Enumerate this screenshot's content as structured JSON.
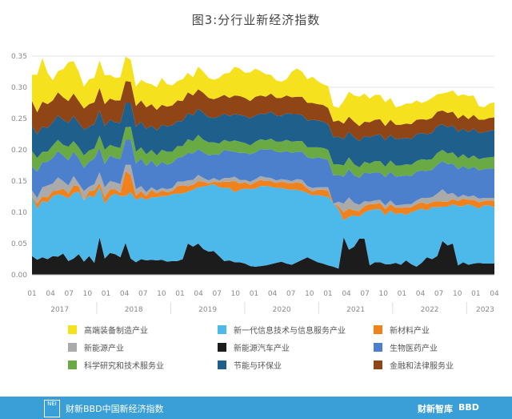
{
  "title": "图3:分行业新经济指数",
  "footer": {
    "logo": "NEI",
    "text": "财新BBD中国新经济指数",
    "brand1": "财新智库",
    "brand2": "BBD"
  },
  "chart_data": {
    "type": "area",
    "stacked": true,
    "ylim": [
      0,
      0.35
    ],
    "yticks": [
      "0.00",
      "0.05",
      "0.10",
      "0.15",
      "0.20",
      "0.25",
      "0.30",
      "0.35"
    ],
    "month_ticks": [
      "01",
      "04",
      "07",
      "10",
      "01",
      "04",
      "07",
      "10",
      "01",
      "04",
      "07",
      "10",
      "01",
      "04",
      "07",
      "10",
      "01",
      "04",
      "07",
      "10",
      "01",
      "04",
      "07",
      "10",
      "01",
      "04"
    ],
    "year_labels": [
      "2017",
      "2018",
      "2019",
      "2020",
      "2021",
      "2022",
      "2023"
    ],
    "x_start": "2017-01",
    "x_end": "2023-04",
    "legend_columns": 3,
    "grid": true,
    "series": [
      {
        "name": "新能源汽车产业",
        "color": "#1c1c1c",
        "values": [
          0.03,
          0.024,
          0.028,
          0.025,
          0.03,
          0.029,
          0.034,
          0.022,
          0.026,
          0.033,
          0.021,
          0.03,
          0.019,
          0.06,
          0.026,
          0.035,
          0.033,
          0.028,
          0.051,
          0.026,
          0.02,
          0.025,
          0.023,
          0.024,
          0.023,
          0.024,
          0.021,
          0.022,
          0.022,
          0.025,
          0.05,
          0.045,
          0.05,
          0.041,
          0.037,
          0.038,
          0.03,
          0.022,
          0.023,
          0.02,
          0.02,
          0.018,
          0.014,
          0.013,
          0.014,
          0.015,
          0.017,
          0.019,
          0.021,
          0.018,
          0.016,
          0.02,
          0.024,
          0.028,
          0.024,
          0.02,
          0.018,
          0.015,
          0.013,
          0.01,
          0.06,
          0.04,
          0.045,
          0.058,
          0.058,
          0.015,
          0.02,
          0.02,
          0.017,
          0.017,
          0.019,
          0.016,
          0.023,
          0.017,
          0.013,
          0.019,
          0.028,
          0.025,
          0.03,
          0.054,
          0.047,
          0.05,
          0.015,
          0.02,
          0.016,
          0.018,
          0.019,
          0.018,
          0.018,
          0.018
        ]
      },
      {
        "name": "新一代信息技术与信息服务产业",
        "color": "#4db8ea",
        "values": [
          0.095,
          0.082,
          0.09,
          0.091,
          0.096,
          0.1,
          0.093,
          0.1,
          0.105,
          0.1,
          0.098,
          0.097,
          0.105,
          0.08,
          0.088,
          0.09,
          0.097,
          0.098,
          0.075,
          0.106,
          0.1,
          0.099,
          0.097,
          0.1,
          0.101,
          0.102,
          0.105,
          0.107,
          0.108,
          0.105,
          0.083,
          0.091,
          0.09,
          0.1,
          0.106,
          0.107,
          0.11,
          0.117,
          0.116,
          0.112,
          0.116,
          0.12,
          0.123,
          0.125,
          0.128,
          0.127,
          0.124,
          0.12,
          0.118,
          0.119,
          0.12,
          0.116,
          0.11,
          0.103,
          0.103,
          0.108,
          0.108,
          0.11,
          0.101,
          0.095,
          0.027,
          0.053,
          0.05,
          0.035,
          0.042,
          0.088,
          0.085,
          0.085,
          0.078,
          0.086,
          0.078,
          0.083,
          0.073,
          0.083,
          0.09,
          0.087,
          0.075,
          0.083,
          0.078,
          0.055,
          0.062,
          0.063,
          0.095,
          0.09,
          0.097,
          0.092,
          0.087,
          0.093,
          0.093,
          0.09
        ]
      },
      {
        "name": "新材料产业",
        "color": "#f0821e",
        "values": [
          0.0,
          0.008,
          0.007,
          0.008,
          0.008,
          0.006,
          0.011,
          0.008,
          0.012,
          0.009,
          0.0,
          0.007,
          0.011,
          0.007,
          0.01,
          0.012,
          0.007,
          0.005,
          0.04,
          0.028,
          0.007,
          0.01,
          0.006,
          0.012,
          0.006,
          0.009,
          0.006,
          0.005,
          0.012,
          0.013,
          0.009,
          0.008,
          0.01,
          0.008,
          0.003,
          0.004,
          0.008,
          0.01,
          0.01,
          0.018,
          0.01,
          0.01,
          0.007,
          0.01,
          0.01,
          0.008,
          0.009,
          0.008,
          0.01,
          0.01,
          0.01,
          0.012,
          0.012,
          0.007,
          0.006,
          0.008,
          0.01,
          0.01,
          0.0,
          0.005,
          0.013,
          0.013,
          0.008,
          0.009,
          0.01,
          0.01,
          0.008,
          0.01,
          0.01,
          0.01,
          0.01,
          0.008,
          0.012,
          0.008,
          0.01,
          0.01,
          0.01,
          0.008,
          0.01,
          0.008,
          0.008,
          0.008,
          0.008,
          0.012,
          0.007,
          0.01,
          0.01,
          0.007,
          0.008,
          0.01
        ]
      },
      {
        "name": "新能源产业",
        "color": "#aaaaaa",
        "values": [
          0.01,
          0.009,
          0.015,
          0.019,
          0.012,
          0.021,
          0.012,
          0.013,
          0.015,
          0.004,
          0.015,
          0.007,
          0.01,
          0.017,
          0.016,
          0.013,
          0.011,
          0.014,
          0.01,
          0.016,
          0.01,
          0.008,
          0.006,
          0.004,
          0.005,
          0.004,
          0.005,
          0.005,
          0.007,
          0.006,
          0.009,
          0.008,
          0.01,
          0.006,
          0.005,
          0.006,
          0.003,
          0.006,
          0.006,
          0.007,
          0.006,
          0.004,
          0.005,
          0.005,
          0.006,
          0.006,
          0.005,
          0.004,
          0.004,
          0.005,
          0.004,
          0.005,
          0.006,
          0.004,
          0.006,
          0.004,
          0.004,
          0.005,
          0.0,
          0.007,
          0.014,
          0.018,
          0.012,
          0.01,
          0.008,
          0.004,
          0.006,
          0.005,
          0.006,
          0.006,
          0.004,
          0.005,
          0.005,
          0.005,
          0.006,
          0.007,
          0.01,
          0.008,
          0.012,
          0.02,
          0.012,
          0.01,
          0.006,
          0.006,
          0.005,
          0.007,
          0.006,
          0.005,
          0.004,
          0.005
        ]
      },
      {
        "name": "生物医药产业",
        "color": "#4c7fcc",
        "values": [
          0.038,
          0.042,
          0.04,
          0.038,
          0.041,
          0.042,
          0.041,
          0.04,
          0.039,
          0.04,
          0.037,
          0.04,
          0.041,
          0.039,
          0.037,
          0.041,
          0.039,
          0.04,
          0.04,
          0.04,
          0.041,
          0.044,
          0.042,
          0.043,
          0.038,
          0.042,
          0.039,
          0.04,
          0.038,
          0.04,
          0.044,
          0.042,
          0.041,
          0.041,
          0.04,
          0.038,
          0.041,
          0.045,
          0.043,
          0.04,
          0.043,
          0.043,
          0.044,
          0.043,
          0.043,
          0.044,
          0.046,
          0.046,
          0.043,
          0.046,
          0.045,
          0.044,
          0.045,
          0.046,
          0.047,
          0.048,
          0.046,
          0.044,
          0.045,
          0.043,
          0.043,
          0.045,
          0.044,
          0.043,
          0.046,
          0.045,
          0.045,
          0.044,
          0.045,
          0.046,
          0.046,
          0.046,
          0.046,
          0.045,
          0.046,
          0.044,
          0.043,
          0.044,
          0.046,
          0.045,
          0.048,
          0.047,
          0.045,
          0.046,
          0.044,
          0.046,
          0.045,
          0.046,
          0.047,
          0.047
        ]
      },
      {
        "name": "科学研究和技术服务业",
        "color": "#6aaa44",
        "values": [
          0.025,
          0.022,
          0.017,
          0.016,
          0.02,
          0.018,
          0.017,
          0.022,
          0.017,
          0.018,
          0.02,
          0.018,
          0.016,
          0.02,
          0.023,
          0.017,
          0.018,
          0.018,
          0.02,
          0.021,
          0.019,
          0.018,
          0.019,
          0.017,
          0.018,
          0.019,
          0.021,
          0.018,
          0.019,
          0.017,
          0.022,
          0.02,
          0.023,
          0.02,
          0.021,
          0.019,
          0.018,
          0.016,
          0.015,
          0.018,
          0.018,
          0.016,
          0.014,
          0.017,
          0.016,
          0.015,
          0.017,
          0.016,
          0.017,
          0.018,
          0.018,
          0.017,
          0.017,
          0.016,
          0.018,
          0.016,
          0.017,
          0.016,
          0.018,
          0.017,
          0.018,
          0.019,
          0.018,
          0.017,
          0.017,
          0.016,
          0.018,
          0.018,
          0.017,
          0.018,
          0.018,
          0.017,
          0.018,
          0.018,
          0.017,
          0.018,
          0.018,
          0.017,
          0.019,
          0.018,
          0.017,
          0.018,
          0.018,
          0.019,
          0.017,
          0.018,
          0.018,
          0.018,
          0.018,
          0.019
        ]
      },
      {
        "name": "节能与环保业",
        "color": "#1f5f8c",
        "values": [
          0.04,
          0.038,
          0.04,
          0.038,
          0.037,
          0.039,
          0.04,
          0.038,
          0.04,
          0.039,
          0.041,
          0.038,
          0.039,
          0.04,
          0.038,
          0.04,
          0.039,
          0.04,
          0.039,
          0.038,
          0.04,
          0.041,
          0.04,
          0.039,
          0.04,
          0.04,
          0.041,
          0.042,
          0.04,
          0.04,
          0.042,
          0.041,
          0.042,
          0.043,
          0.04,
          0.039,
          0.043,
          0.042,
          0.041,
          0.042,
          0.043,
          0.043,
          0.043,
          0.042,
          0.041,
          0.042,
          0.043,
          0.042,
          0.041,
          0.043,
          0.044,
          0.043,
          0.042,
          0.043,
          0.044,
          0.043,
          0.042,
          0.041,
          0.043,
          0.044,
          0.042,
          0.041,
          0.043,
          0.042,
          0.041,
          0.042,
          0.041,
          0.043,
          0.042,
          0.041,
          0.042,
          0.043,
          0.042,
          0.041,
          0.043,
          0.042,
          0.041,
          0.042,
          0.043,
          0.041,
          0.042,
          0.043,
          0.042,
          0.041,
          0.042,
          0.043,
          0.042,
          0.041,
          0.042,
          0.043
        ]
      },
      {
        "name": "金融和法律服务业",
        "color": "#8f4516",
        "values": [
          0.04,
          0.035,
          0.04,
          0.038,
          0.035,
          0.037,
          0.036,
          0.035,
          0.036,
          0.035,
          0.034,
          0.036,
          0.035,
          0.036,
          0.035,
          0.034,
          0.035,
          0.036,
          0.035,
          0.034,
          0.033,
          0.034,
          0.035,
          0.034,
          0.033,
          0.032,
          0.031,
          0.032,
          0.033,
          0.032,
          0.033,
          0.032,
          0.031,
          0.032,
          0.031,
          0.03,
          0.031,
          0.03,
          0.029,
          0.03,
          0.03,
          0.029,
          0.028,
          0.03,
          0.029,
          0.028,
          0.029,
          0.028,
          0.029,
          0.028,
          0.027,
          0.028,
          0.029,
          0.028,
          0.027,
          0.026,
          0.027,
          0.026,
          0.025,
          0.026,
          0.025,
          0.024,
          0.025,
          0.024,
          0.023,
          0.024,
          0.025,
          0.024,
          0.023,
          0.024,
          0.023,
          0.022,
          0.023,
          0.024,
          0.023,
          0.022,
          0.023,
          0.024,
          0.023,
          0.022,
          0.023,
          0.022,
          0.021,
          0.022,
          0.021,
          0.022,
          0.021,
          0.02,
          0.021,
          0.02
        ]
      },
      {
        "name": "高端装备制造产业",
        "color": "#f5e11e",
        "values": [
          0.042,
          0.06,
          0.07,
          0.05,
          0.032,
          0.034,
          0.045,
          0.062,
          0.052,
          0.047,
          0.035,
          0.04,
          0.039,
          0.044,
          0.046,
          0.038,
          0.036,
          0.037,
          0.039,
          0.035,
          0.031,
          0.033,
          0.039,
          0.032,
          0.036,
          0.043,
          0.036,
          0.032,
          0.031,
          0.035,
          0.031,
          0.029,
          0.036,
          0.034,
          0.032,
          0.031,
          0.031,
          0.034,
          0.04,
          0.046,
          0.044,
          0.04,
          0.046,
          0.045,
          0.039,
          0.036,
          0.03,
          0.028,
          0.026,
          0.026,
          0.041,
          0.045,
          0.04,
          0.038,
          0.042,
          0.037,
          0.033,
          0.035,
          0.025,
          0.02,
          0.036,
          0.04,
          0.042,
          0.047,
          0.045,
          0.038,
          0.04,
          0.039,
          0.038,
          0.035,
          0.028,
          0.03,
          0.032,
          0.033,
          0.031,
          0.026,
          0.03,
          0.032,
          0.028,
          0.027,
          0.033,
          0.034,
          0.036,
          0.033,
          0.037,
          0.031,
          0.022,
          0.02,
          0.023,
          0.024
        ]
      }
    ]
  }
}
